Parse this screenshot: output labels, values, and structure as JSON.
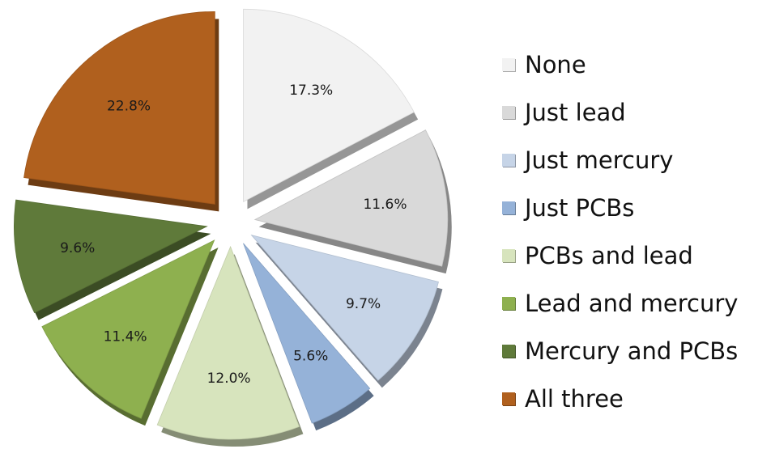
{
  "chart_data": {
    "type": "pie",
    "title": "",
    "exploded": true,
    "three_d": true,
    "legend_position": "right",
    "slices": [
      {
        "name": "None",
        "value": 17.3,
        "label": "17.3%",
        "color": "#f2f2f2"
      },
      {
        "name": "Just lead",
        "value": 11.6,
        "label": "11.6%",
        "color": "#d9d9d9"
      },
      {
        "name": "Just mercury",
        "value": 9.7,
        "label": "9.7%",
        "color": "#c6d4e7"
      },
      {
        "name": "Just PCBs",
        "value": 5.6,
        "label": "5.6%",
        "color": "#95b2d8"
      },
      {
        "name": "PCBs and lead",
        "value": 12.0,
        "label": "12.0%",
        "color": "#d7e4bd"
      },
      {
        "name": "Lead and mercury",
        "value": 11.4,
        "label": "11.4%",
        "color": "#8eb04f"
      },
      {
        "name": "Mercury and PCBs",
        "value": 9.6,
        "label": "9.6%",
        "color": "#5f7a3a"
      },
      {
        "name": "All three",
        "value": 22.8,
        "label": "22.8%",
        "color": "#b0601e"
      }
    ]
  }
}
